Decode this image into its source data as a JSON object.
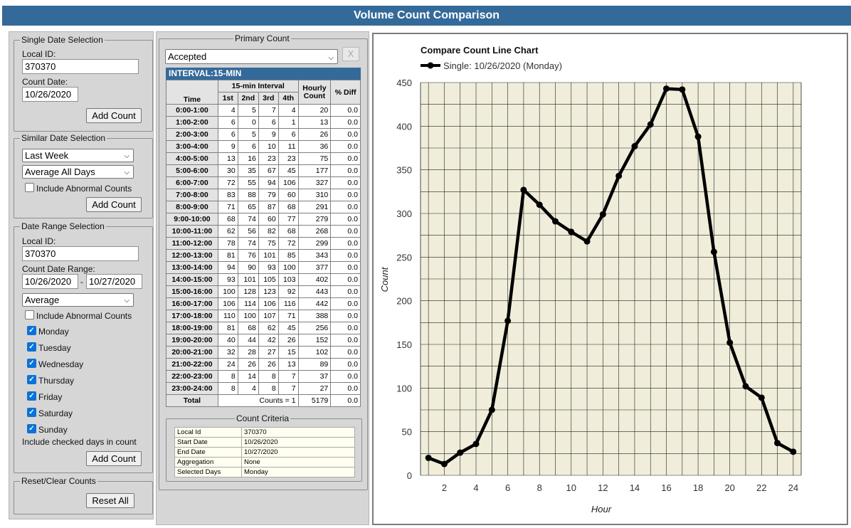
{
  "app": {
    "title": "Volume Count Comparison"
  },
  "single": {
    "legend": "Single Date Selection",
    "local_id_label": "Local ID:",
    "local_id": "370370",
    "count_date_label": "Count Date:",
    "count_date": "10/26/2020",
    "add_label": "Add Count"
  },
  "similar": {
    "legend": "Similar Date Selection",
    "period": "Last Week",
    "aggregation": "Average All Days",
    "abnormal_label": "Include Abnormal Counts",
    "add_label": "Add Count"
  },
  "range": {
    "legend": "Date Range Selection",
    "local_id_label": "Local ID:",
    "local_id": "370370",
    "range_label": "Count Date Range:",
    "start": "10/26/2020",
    "dash": "-",
    "end": "10/27/2020",
    "aggregation": "Average",
    "abnormal_label": "Include Abnormal Counts",
    "days": [
      {
        "label": "Monday",
        "checked": true
      },
      {
        "label": "Tuesday",
        "checked": true
      },
      {
        "label": "Wednesday",
        "checked": true
      },
      {
        "label": "Thursday",
        "checked": true
      },
      {
        "label": "Friday",
        "checked": true
      },
      {
        "label": "Saturday",
        "checked": true
      },
      {
        "label": "Sunday",
        "checked": true
      }
    ],
    "checked_note": "Include checked days in count",
    "add_label": "Add Count"
  },
  "reset": {
    "legend": "Reset/Clear Counts",
    "button": "Reset All"
  },
  "primary": {
    "legend": "Primary Count",
    "status": "Accepted",
    "close": "X",
    "interval": "INTERVAL:15-MIN",
    "headers": {
      "time": "Time",
      "group": "15-min Interval",
      "q1": "1st",
      "q2": "2nd",
      "q3": "3rd",
      "q4": "4th",
      "hourly": "Hourly Count",
      "hourly_line1": "Hourly",
      "hourly_line2": "Count",
      "diff": "% Diff"
    },
    "rows": [
      [
        "0:00-1:00",
        "4",
        "5",
        "7",
        "4",
        "20",
        "0.0"
      ],
      [
        "1:00-2:00",
        "6",
        "0",
        "6",
        "1",
        "13",
        "0.0"
      ],
      [
        "2:00-3:00",
        "6",
        "5",
        "9",
        "6",
        "26",
        "0.0"
      ],
      [
        "3:00-4:00",
        "9",
        "6",
        "10",
        "11",
        "36",
        "0.0"
      ],
      [
        "4:00-5:00",
        "13",
        "16",
        "23",
        "23",
        "75",
        "0.0"
      ],
      [
        "5:00-6:00",
        "30",
        "35",
        "67",
        "45",
        "177",
        "0.0"
      ],
      [
        "6:00-7:00",
        "72",
        "55",
        "94",
        "106",
        "327",
        "0.0"
      ],
      [
        "7:00-8:00",
        "83",
        "88",
        "79",
        "60",
        "310",
        "0.0"
      ],
      [
        "8:00-9:00",
        "71",
        "65",
        "87",
        "68",
        "291",
        "0.0"
      ],
      [
        "9:00-10:00",
        "68",
        "74",
        "60",
        "77",
        "279",
        "0.0"
      ],
      [
        "10:00-11:00",
        "62",
        "56",
        "82",
        "68",
        "268",
        "0.0"
      ],
      [
        "11:00-12:00",
        "78",
        "74",
        "75",
        "72",
        "299",
        "0.0"
      ],
      [
        "12:00-13:00",
        "81",
        "76",
        "101",
        "85",
        "343",
        "0.0"
      ],
      [
        "13:00-14:00",
        "94",
        "90",
        "93",
        "100",
        "377",
        "0.0"
      ],
      [
        "14:00-15:00",
        "93",
        "101",
        "105",
        "103",
        "402",
        "0.0"
      ],
      [
        "15:00-16:00",
        "100",
        "128",
        "123",
        "92",
        "443",
        "0.0"
      ],
      [
        "16:00-17:00",
        "106",
        "114",
        "106",
        "116",
        "442",
        "0.0"
      ],
      [
        "17:00-18:00",
        "110",
        "100",
        "107",
        "71",
        "388",
        "0.0"
      ],
      [
        "18:00-19:00",
        "81",
        "68",
        "62",
        "45",
        "256",
        "0.0"
      ],
      [
        "19:00-20:00",
        "40",
        "44",
        "42",
        "26",
        "152",
        "0.0"
      ],
      [
        "20:00-21:00",
        "32",
        "28",
        "27",
        "15",
        "102",
        "0.0"
      ],
      [
        "21:00-22:00",
        "24",
        "26",
        "26",
        "13",
        "89",
        "0.0"
      ],
      [
        "22:00-23:00",
        "8",
        "14",
        "8",
        "7",
        "37",
        "0.0"
      ],
      [
        "23:00-24:00",
        "8",
        "4",
        "8",
        "7",
        "27",
        "0.0"
      ]
    ],
    "total_label": "Total",
    "total_counts": "Counts = 1",
    "total_value": "5179",
    "total_diff": "0.0"
  },
  "criteria": {
    "legend": "Count Criteria",
    "rows": [
      [
        "Local Id",
        "370370"
      ],
      [
        "Start Date",
        "10/26/2020"
      ],
      [
        "End Date",
        "10/27/2020"
      ],
      [
        "Aggregation",
        "None"
      ],
      [
        "Selected Days",
        "Monday"
      ]
    ]
  },
  "chart_data": {
    "type": "line",
    "title": "Compare Count Line Chart",
    "xlabel": "Hour",
    "ylabel": "Count",
    "xlim": [
      0.5,
      24.5
    ],
    "ylim": [
      0,
      450
    ],
    "xticks": [
      2,
      4,
      6,
      8,
      10,
      12,
      14,
      16,
      18,
      20,
      22,
      24
    ],
    "yticks": [
      0,
      50,
      100,
      150,
      200,
      250,
      300,
      350,
      400,
      450
    ],
    "grid": true,
    "legend_position": "top-left",
    "colors": {
      "line": "#000000",
      "plot_bg": "#f0edda",
      "grid": "#222222"
    },
    "series": [
      {
        "name": "Single: 10/26/2020 (Monday)",
        "x": [
          1,
          2,
          3,
          4,
          5,
          6,
          7,
          8,
          9,
          10,
          11,
          12,
          13,
          14,
          15,
          16,
          17,
          18,
          19,
          20,
          21,
          22,
          23,
          24
        ],
        "y": [
          20,
          13,
          26,
          36,
          75,
          177,
          327,
          310,
          291,
          279,
          268,
          299,
          343,
          377,
          402,
          443,
          442,
          388,
          256,
          152,
          102,
          89,
          37,
          27
        ]
      }
    ]
  }
}
